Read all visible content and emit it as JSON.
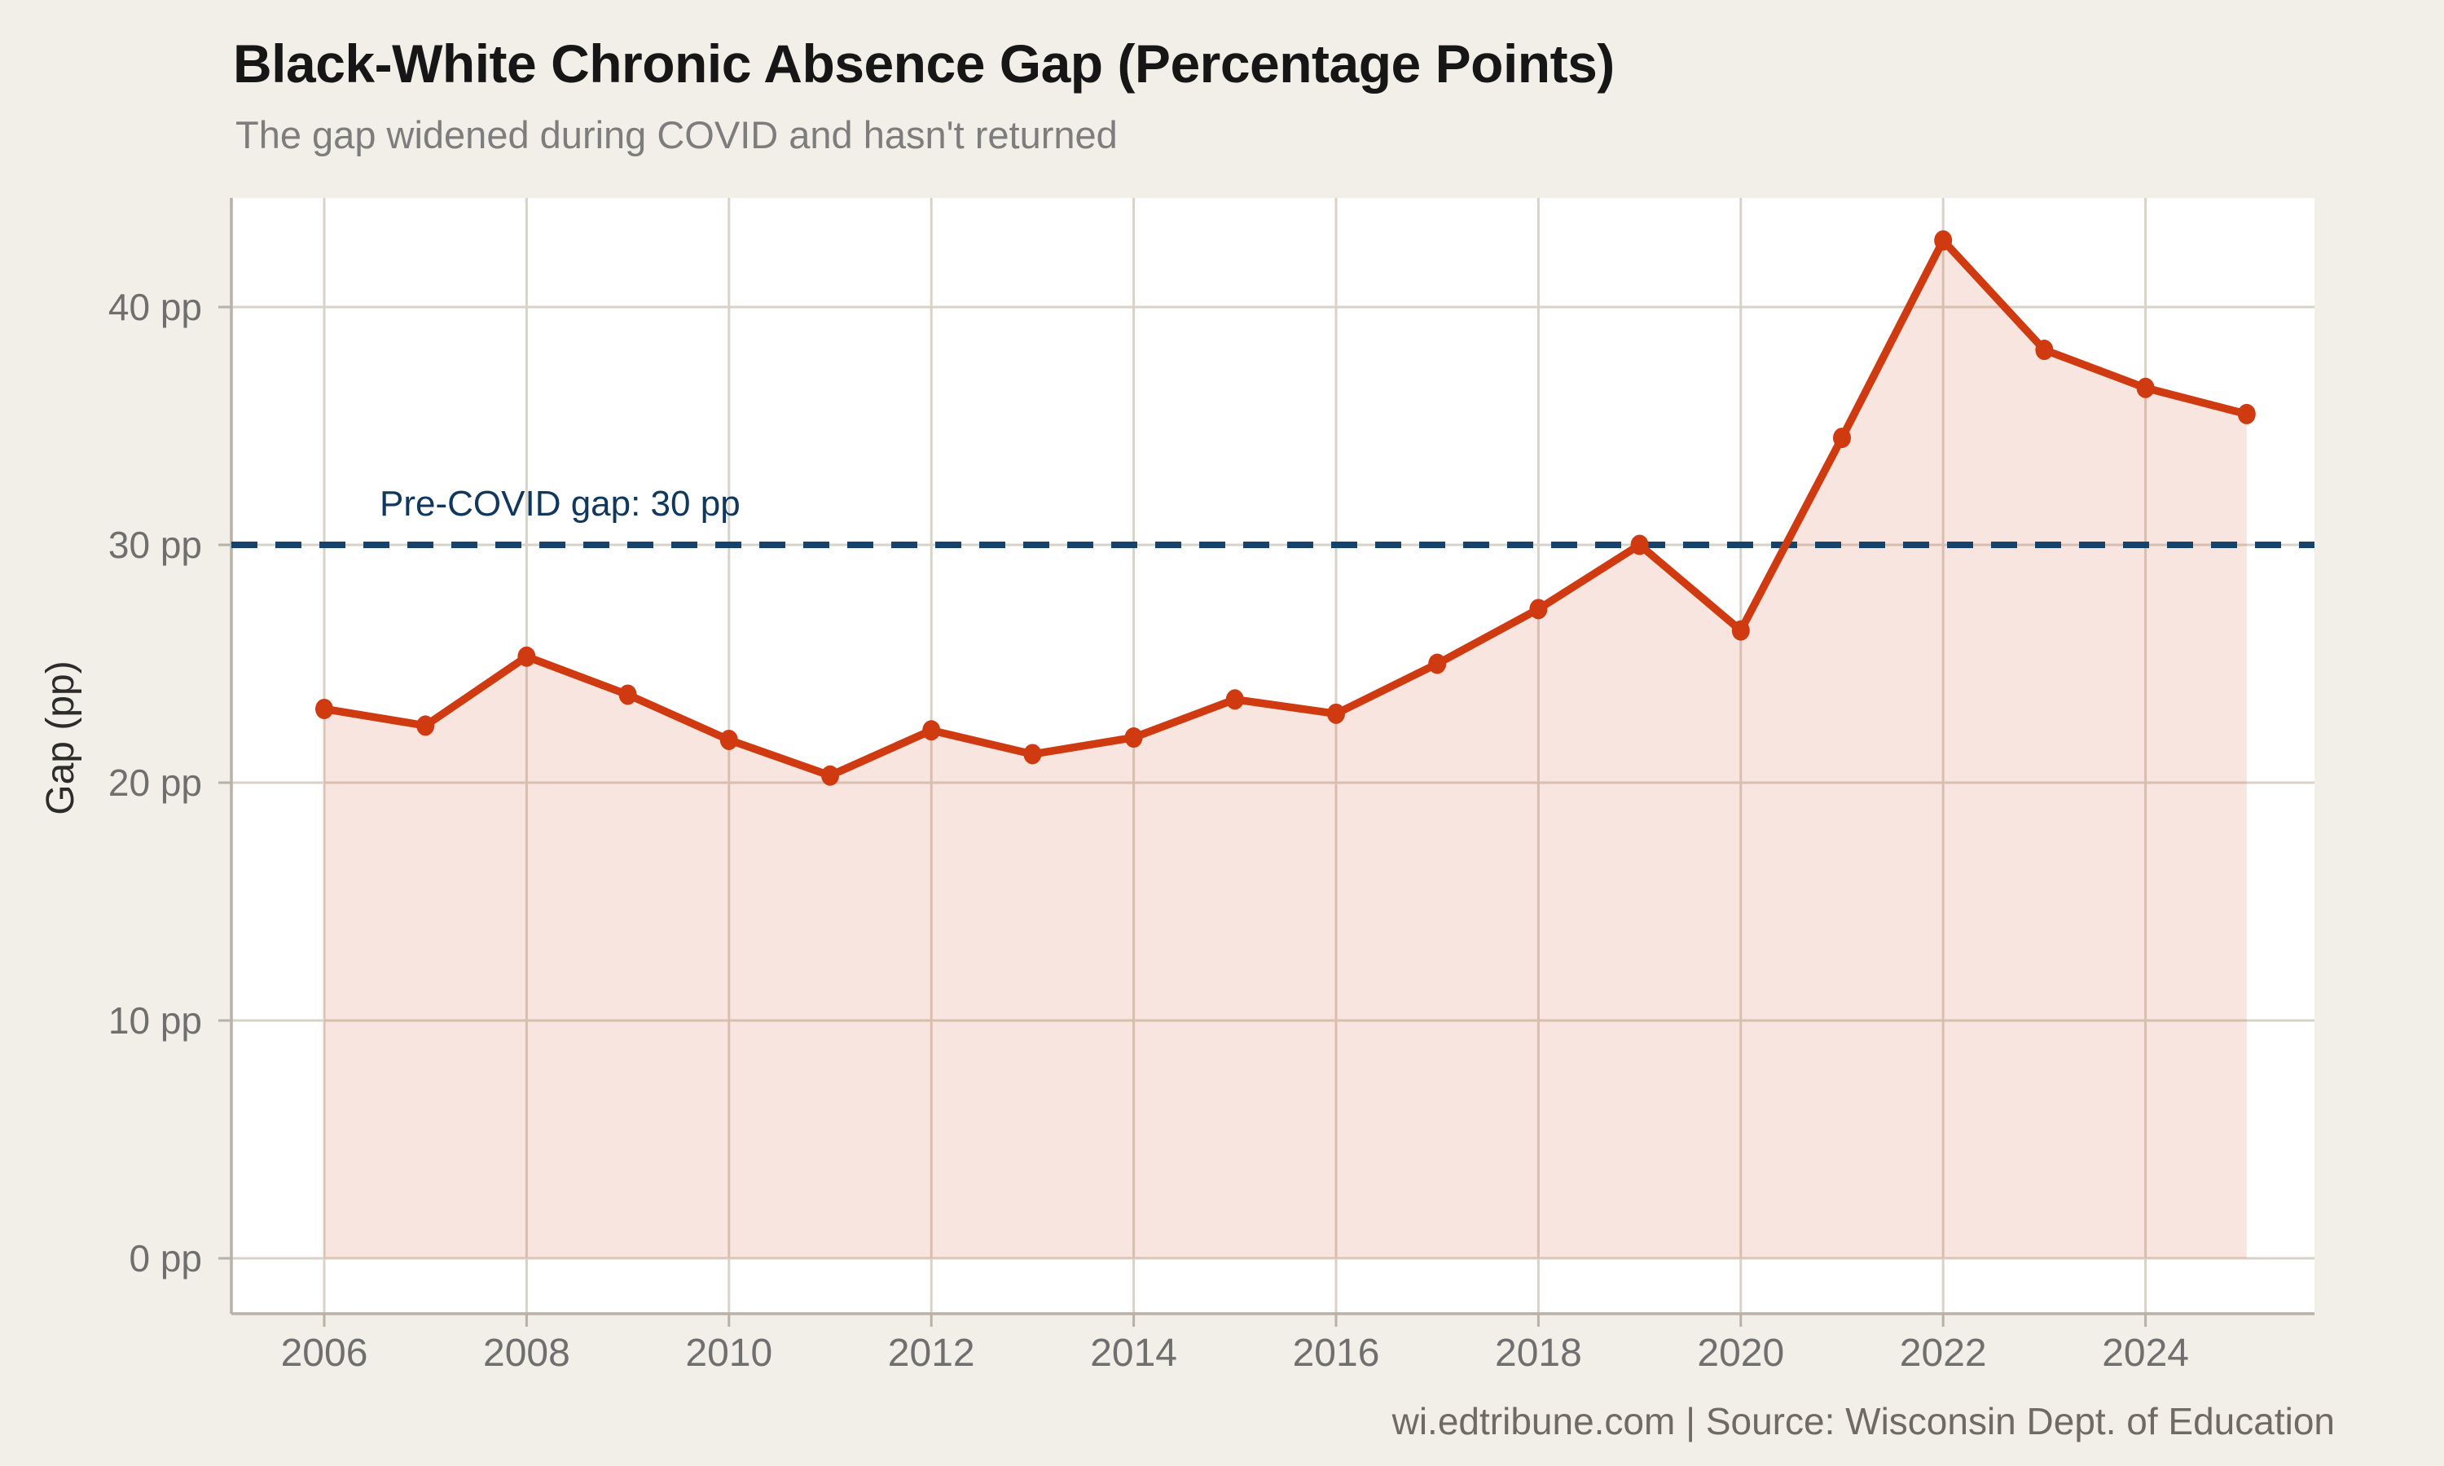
{
  "page": {
    "background": "#f2efe8"
  },
  "header": {
    "title": "Black-White Chronic Absence Gap (Percentage Points)",
    "subtitle": "The gap widened during COVID and hasn't returned"
  },
  "chart_data": {
    "type": "area",
    "title": "Black-White Chronic Absence Gap (Percentage Points)",
    "subtitle": "The gap widened during COVID and hasn't returned",
    "x": [
      2006,
      2007,
      2008,
      2009,
      2010,
      2011,
      2012,
      2013,
      2014,
      2015,
      2016,
      2017,
      2018,
      2019,
      2020,
      2021,
      2022,
      2023,
      2024,
      2025
    ],
    "series": [
      {
        "name": "Black-White chronic absence gap",
        "values": [
          23.1,
          22.4,
          25.3,
          23.7,
          21.8,
          20.3,
          22.2,
          21.2,
          21.9,
          23.5,
          22.9,
          25.0,
          27.3,
          30.0,
          26.4,
          34.5,
          42.8,
          38.2,
          36.6,
          35.5
        ]
      }
    ],
    "xlabel": "",
    "ylabel": "Gap (pp)",
    "ylim": [
      0,
      45
    ],
    "yticks": {
      "values": [
        0,
        10,
        20,
        30,
        40
      ],
      "labels": [
        "0 pp",
        "10 pp",
        "20 pp",
        "30 pp",
        "40 pp"
      ]
    },
    "xticks": [
      2006,
      2008,
      2010,
      2012,
      2014,
      2016,
      2018,
      2020,
      2022,
      2024
    ],
    "grid": true,
    "legend": false,
    "reference_line": {
      "value": 30,
      "style": "dashed",
      "label": "Pre-COVID gap: 30 pp"
    }
  },
  "footer": {
    "credit": "wi.edtribune.com | Source: Wisconsin Dept. of Education"
  },
  "colors": {
    "background": "#f2efe8",
    "panel": "#ffffff",
    "gridline": "#d8d2c8",
    "axis": "#b7b1a6",
    "line": "#cf3a10",
    "marker": "#cf3a10",
    "area_fill": "rgba(207,58,15,0.135)",
    "reference_line": "#16436b",
    "annotation_text": "#10375e",
    "title_text": "#161616",
    "subtitle_text": "#7d7d7d",
    "tick_text": "#6f6f6f",
    "footer_text": "#6f6a63"
  }
}
